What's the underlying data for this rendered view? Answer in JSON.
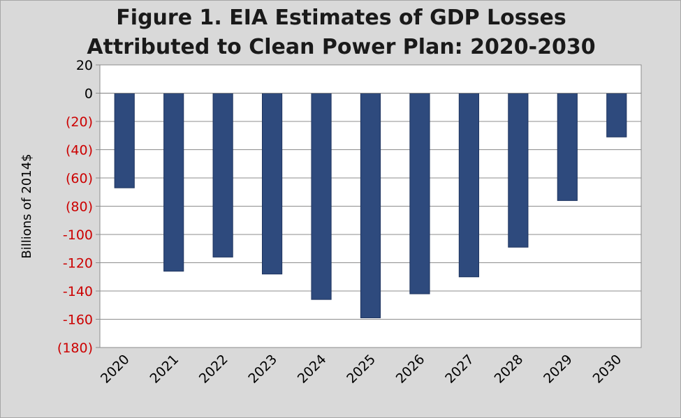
{
  "chart_data": {
    "type": "bar",
    "title_lines": [
      "Figure 1. EIA Estimates of GDP Losses",
      "Attributed to Clean Power Plan: 2020-2030"
    ],
    "xlabel": "",
    "ylabel": "Billions of 2014$",
    "categories": [
      "2020",
      "2021",
      "2022",
      "2023",
      "2024",
      "2025",
      "2026",
      "2027",
      "2028",
      "2029",
      "2030"
    ],
    "values": [
      -67,
      -126,
      -116,
      -128,
      -146,
      -159,
      -142,
      -130,
      -109,
      -76,
      -31
    ],
    "ylim": [
      -180,
      20
    ],
    "yticks": [
      20,
      0,
      -20,
      -40,
      -60,
      -80,
      -100,
      -120,
      -140,
      -160,
      -180
    ],
    "ytick_labels": [
      "20",
      "0",
      "(20)",
      "(40)",
      "(60)",
      "(80)",
      "-100",
      "-120",
      "-140",
      "-160",
      "(180)"
    ],
    "grid": true,
    "legend": "none",
    "colors": {
      "bar": "#2e4a7d",
      "bar_edge": "#1f3560",
      "negative_tick": "#cc0000",
      "positive_tick": "#000000",
      "plot_bg": "#ffffff",
      "grid": "#8c8c8c"
    }
  }
}
